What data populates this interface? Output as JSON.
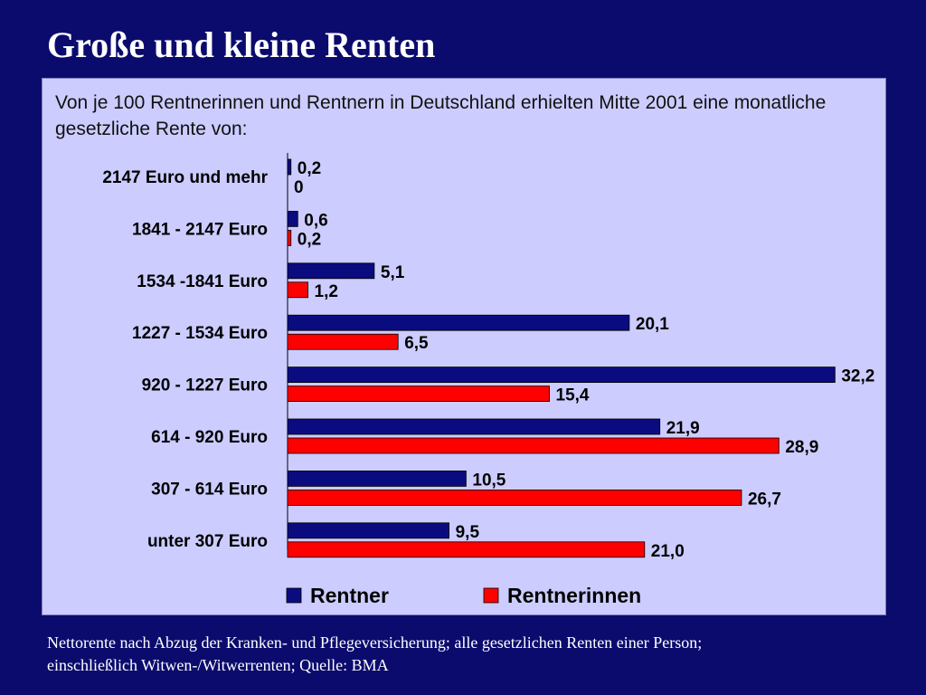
{
  "slide": {
    "title": "Große und kleine Renten",
    "footnote_line1": "Nettorente nach Abzug der Kranken- und Pflegeversicherung; alle gesetzlichen Renten einer Person;",
    "footnote_line2": "einschließlich Witwen-/Witwerrenten; Quelle: BMA"
  },
  "chart_data": {
    "type": "bar",
    "orientation": "horizontal",
    "title": "Von je 100 Rentnerinnen und Rentnern in Deutschland erhielten Mitte 2001 eine monatliche gesetzliche Rente von:",
    "categories": [
      "2147 Euro und mehr",
      "1841 - 2147 Euro",
      "1534 -1841 Euro",
      "1227 - 1534 Euro",
      "920 - 1227 Euro",
      "614 - 920 Euro",
      "307 - 614 Euro",
      "unter 307 Euro"
    ],
    "series": [
      {
        "name": "Rentner",
        "color": "#0b0b80",
        "values": [
          0.2,
          0.6,
          5.1,
          20.1,
          32.2,
          21.9,
          10.5,
          9.5
        ],
        "labels": [
          "0,2",
          "0,6",
          "5,1",
          "20,1",
          "32,2",
          "21,9",
          "10,5",
          "9,5"
        ]
      },
      {
        "name": "Rentnerinnen",
        "color": "#ff0000",
        "values": [
          0,
          0.2,
          1.2,
          6.5,
          15.4,
          28.9,
          26.7,
          21.0
        ],
        "labels": [
          "0",
          "0,2",
          "1,2",
          "6,5",
          "15,4",
          "28,9",
          "26,7",
          "21,0"
        ]
      }
    ],
    "xlim": [
      0,
      33
    ],
    "legend_position": "bottom",
    "grid": false
  }
}
